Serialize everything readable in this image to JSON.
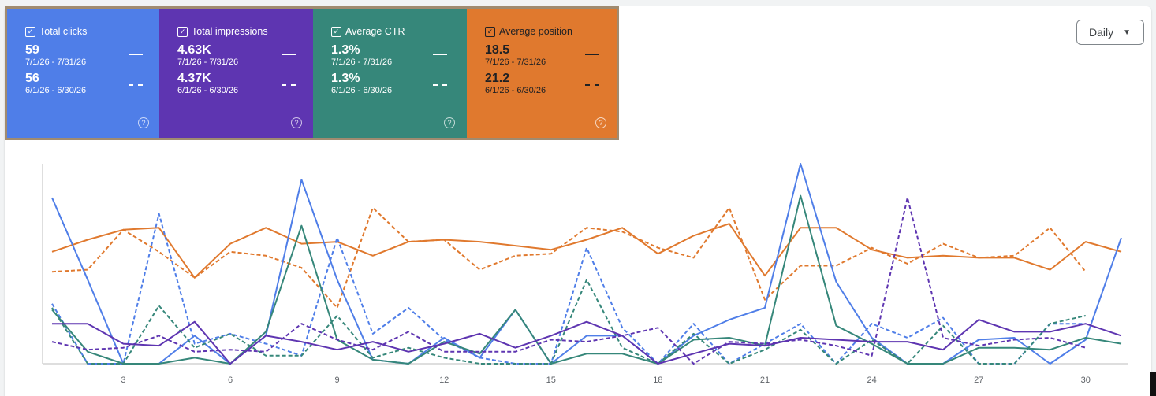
{
  "cards": [
    {
      "id": "clicks",
      "label": "Total clicks",
      "current": "59",
      "current_range": "7/1/26 - 7/31/26",
      "previous": "56",
      "previous_range": "6/1/26 - 6/30/26",
      "color": "#4f7ee8"
    },
    {
      "id": "impressions",
      "label": "Total impressions",
      "current": "4.63K",
      "current_range": "7/1/26 - 7/31/26",
      "previous": "4.37K",
      "previous_range": "6/1/26 - 6/30/26",
      "color": "#5e35b1"
    },
    {
      "id": "ctr",
      "label": "Average CTR",
      "current": "1.3%",
      "current_range": "7/1/26 - 7/31/26",
      "previous": "1.3%",
      "previous_range": "6/1/26 - 6/30/26",
      "color": "#36877a"
    },
    {
      "id": "position",
      "label": "Average position",
      "current": "18.5",
      "current_range": "7/1/26 - 7/31/26",
      "previous": "21.2",
      "previous_range": "6/1/26 - 6/30/26",
      "color": "#e0792e"
    }
  ],
  "period_select": {
    "value": "Daily"
  },
  "chart_data": {
    "type": "line",
    "x": [
      1,
      2,
      3,
      4,
      5,
      6,
      7,
      8,
      9,
      10,
      11,
      12,
      13,
      14,
      15,
      16,
      17,
      18,
      19,
      20,
      21,
      22,
      23,
      24,
      25,
      26,
      27,
      28,
      29,
      30,
      31
    ],
    "xticks": [
      "3",
      "6",
      "9",
      "12",
      "15",
      "18",
      "21",
      "24",
      "27",
      "30"
    ],
    "xtick_values": [
      3,
      6,
      9,
      12,
      15,
      18,
      21,
      24,
      27,
      30
    ],
    "ylim": [
      0,
      100
    ],
    "grid": false,
    "series": [
      {
        "color": "#e0792e",
        "dashed": false,
        "values": [
          56,
          62,
          67,
          68,
          43,
          60,
          68,
          60,
          61,
          54,
          61,
          62,
          61,
          59,
          57,
          62,
          68,
          55,
          64,
          70,
          44,
          68,
          68,
          57,
          53,
          54,
          53,
          53,
          47,
          61,
          56
        ]
      },
      {
        "color": "#e0792e",
        "dashed": true,
        "values": [
          46,
          47,
          67,
          56,
          43,
          56,
          54,
          48,
          28,
          78,
          61,
          62,
          47,
          54,
          55,
          68,
          66,
          58,
          53,
          78,
          32,
          49,
          49,
          58,
          50,
          60,
          53,
          54,
          68,
          46,
          null
        ]
      },
      {
        "color": "#4f7ee8",
        "dashed": false,
        "values": [
          83,
          42,
          0,
          0,
          14,
          0,
          14,
          92,
          42,
          2,
          0,
          13,
          3,
          27,
          0,
          14,
          14,
          0,
          14,
          22,
          28,
          100,
          41,
          13,
          0,
          0,
          12,
          13,
          0,
          12,
          63
        ]
      },
      {
        "color": "#4f7ee8",
        "dashed": true,
        "values": [
          30,
          0,
          0,
          75,
          10,
          15,
          10,
          4,
          63,
          15,
          28,
          12,
          3,
          0,
          0,
          58,
          18,
          0,
          20,
          0,
          10,
          20,
          0,
          20,
          13,
          23,
          0,
          0,
          20,
          20,
          null
        ]
      },
      {
        "color": "#36877a",
        "dashed": false,
        "values": [
          27,
          6,
          0,
          0,
          3,
          0,
          16,
          69,
          12,
          2,
          0,
          11,
          5,
          27,
          0,
          5,
          5,
          0,
          12,
          13,
          9,
          84,
          19,
          10,
          0,
          0,
          8,
          8,
          7,
          13,
          10
        ]
      },
      {
        "color": "#36877a",
        "dashed": true,
        "values": [
          28,
          0,
          0,
          29,
          8,
          15,
          4,
          4,
          24,
          3,
          8,
          3,
          0,
          0,
          0,
          42,
          8,
          0,
          15,
          0,
          7,
          17,
          0,
          12,
          0,
          19,
          0,
          0,
          20,
          24,
          null
        ]
      },
      {
        "color": "#5e35b1",
        "dashed": false,
        "values": [
          20,
          20,
          10,
          9,
          21,
          0,
          14,
          11,
          7,
          11,
          6,
          10,
          15,
          8,
          14,
          21,
          14,
          0,
          5,
          10,
          9,
          13,
          12,
          11,
          11,
          7,
          22,
          16,
          16,
          20,
          14
        ]
      },
      {
        "color": "#5e35b1",
        "dashed": true,
        "values": [
          11,
          7,
          8,
          14,
          6,
          7,
          6,
          20,
          12,
          7,
          16,
          6,
          6,
          6,
          12,
          11,
          14,
          18,
          0,
          11,
          10,
          12,
          9,
          4,
          83,
          13,
          9,
          12,
          13,
          8,
          null
        ]
      }
    ]
  }
}
